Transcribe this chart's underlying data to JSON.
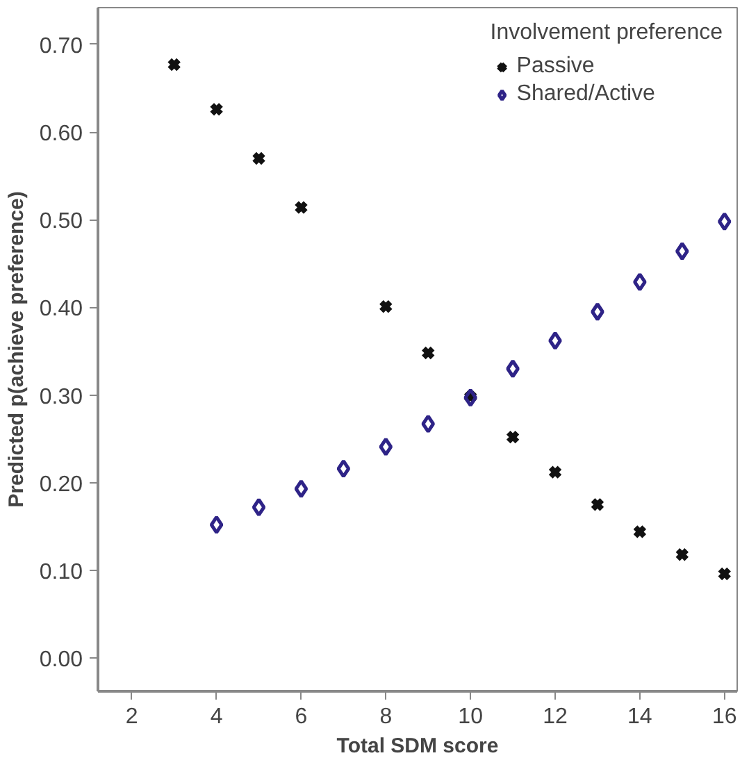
{
  "chart_data": {
    "type": "scatter",
    "xlabel": "Total SDM score",
    "ylabel": "Predicted p(achieve preference)",
    "legend_title": "Involvement preference",
    "xlim": [
      1.2,
      16.3
    ],
    "ylim": [
      -0.038,
      0.742
    ],
    "xticks": [
      2,
      4,
      6,
      8,
      10,
      12,
      14,
      16
    ],
    "yticks": [
      {
        "value": 0,
        "label": "0.00"
      },
      {
        "value": 0.1,
        "label": "0.10"
      },
      {
        "value": 0.2,
        "label": "0.20"
      },
      {
        "value": 0.3,
        "label": "0.30"
      },
      {
        "value": 0.4,
        "label": "0.40"
      },
      {
        "value": 0.5,
        "label": "0.50"
      },
      {
        "value": 0.6,
        "label": "0.60"
      },
      {
        "value": 0.7,
        "label": "0.70"
      }
    ],
    "grid": false,
    "legend": "top right",
    "series": [
      {
        "name": "Passive",
        "color": "#111111",
        "marker": "cross",
        "x": [
          3,
          4,
          5,
          6,
          8,
          9,
          10,
          11,
          12,
          13,
          14,
          15,
          16
        ],
        "values": [
          0.677,
          0.626,
          0.57,
          0.514,
          0.401,
          0.348,
          0.298,
          0.252,
          0.212,
          0.175,
          0.144,
          0.118,
          0.096
        ]
      },
      {
        "name": "Shared/Active",
        "color": "#2e2387",
        "marker": "diamond",
        "x": [
          4,
          5,
          6,
          7,
          8,
          9,
          10,
          11,
          12,
          13,
          14,
          15,
          16
        ],
        "values": [
          0.152,
          0.172,
          0.193,
          0.216,
          0.241,
          0.267,
          0.297,
          0.33,
          0.362,
          0.395,
          0.429,
          0.464,
          0.498
        ]
      }
    ]
  }
}
